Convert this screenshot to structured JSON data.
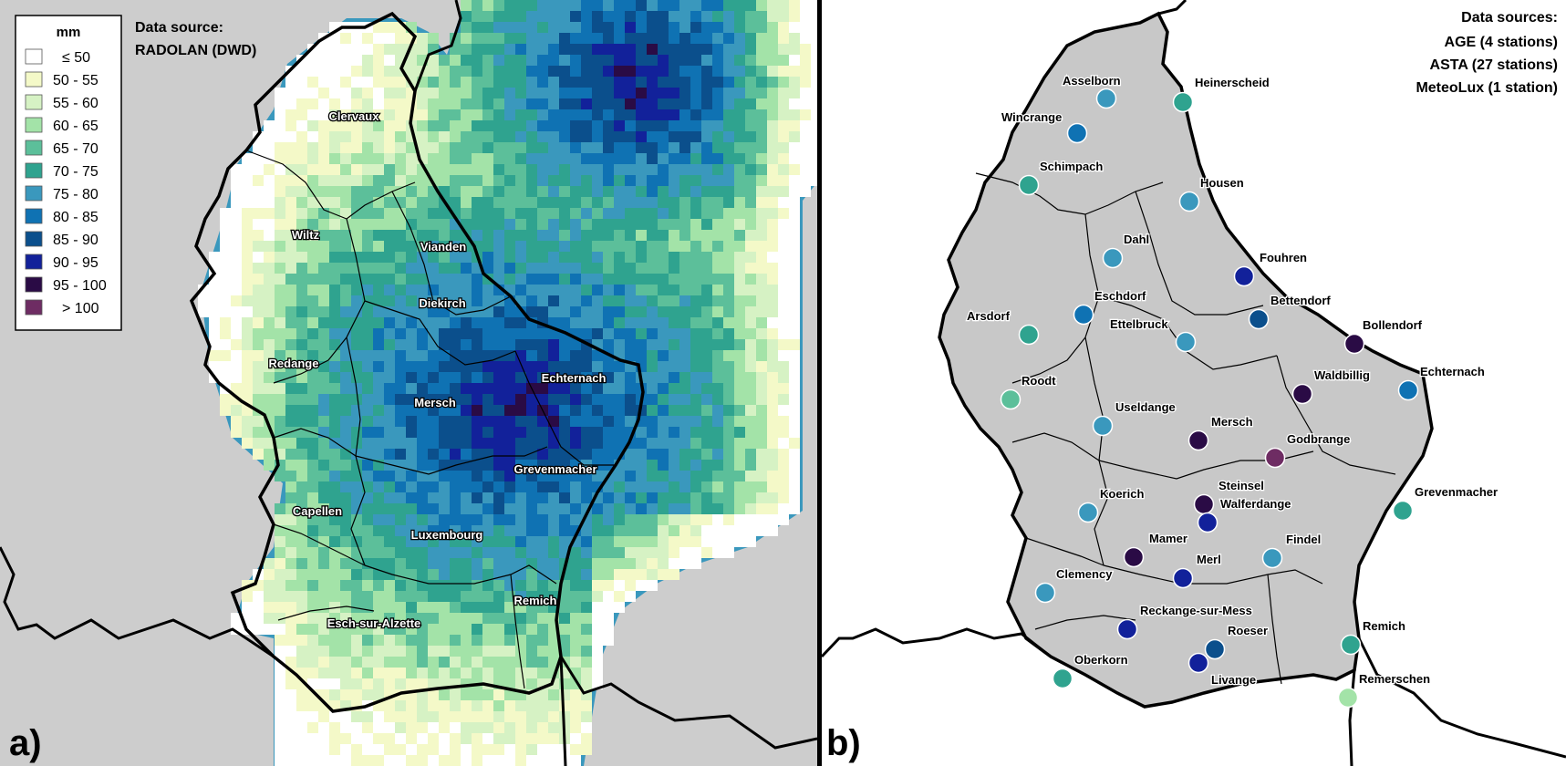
{
  "panel_a": {
    "letter": "a)",
    "source_title": "Data source:",
    "source_name": "RADOLAN (DWD)",
    "legend": {
      "title": "mm",
      "classes": [
        {
          "label": "≤ 50",
          "color": "#ffffff"
        },
        {
          "label": "50 - 55",
          "color": "#f4f9c8"
        },
        {
          "label": "55 - 60",
          "color": "#d6f2c4"
        },
        {
          "label": "60 - 65",
          "color": "#a3e3a8"
        },
        {
          "label": "65 - 70",
          "color": "#5cbf9a"
        },
        {
          "label": "70 - 75",
          "color": "#2fa38f"
        },
        {
          "label": "75 - 80",
          "color": "#3a98bd"
        },
        {
          "label": "80 - 85",
          "color": "#0f72b3"
        },
        {
          "label": "85 - 90",
          "color": "#0b4f8c"
        },
        {
          "label": "90 - 95",
          "color": "#12219a"
        },
        {
          "label": "95 - 100",
          "color": "#2a0b45"
        },
        {
          "label": "> 100",
          "color": "#6e2c63"
        }
      ]
    },
    "cantons": [
      "Clervaux",
      "Wiltz",
      "Vianden",
      "Diekirch",
      "Redange",
      "Mersch",
      "Echternach",
      "Grevenmacher",
      "Capellen",
      "Luxembourg",
      "Esch-sur-Alzette",
      "Remich"
    ]
  },
  "panel_b": {
    "letter": "b)",
    "sources_title": "Data sources:",
    "sources": [
      "AGE (4 stations)",
      "ASTA (27 stations)",
      "MeteoLux (1 station)"
    ],
    "stations": [
      {
        "name": "Asselborn",
        "class": "75 - 80",
        "color": "#3a98bd"
      },
      {
        "name": "Heinerscheid",
        "class": "70 - 75",
        "color": "#2fa38f"
      },
      {
        "name": "Wincrange",
        "class": "80 - 85",
        "color": "#0f72b3"
      },
      {
        "name": "Schimpach",
        "class": "70 - 75",
        "color": "#2fa38f"
      },
      {
        "name": "Housen",
        "class": "75 - 80",
        "color": "#3a98bd"
      },
      {
        "name": "Dahl",
        "class": "75 - 80",
        "color": "#3a98bd"
      },
      {
        "name": "Fouhren",
        "class": "90 - 95",
        "color": "#12219a"
      },
      {
        "name": "Bettendorf",
        "class": "85 - 90",
        "color": "#0b4f8c"
      },
      {
        "name": "Eschdorf",
        "class": "80 - 85",
        "color": "#0f72b3"
      },
      {
        "name": "Arsdorf",
        "class": "70 - 75",
        "color": "#2fa38f"
      },
      {
        "name": "Ettelbruck",
        "class": "75 - 80",
        "color": "#3a98bd"
      },
      {
        "name": "Bollendorf",
        "class": "95 - 100",
        "color": "#2a0b45"
      },
      {
        "name": "Echternach",
        "class": "80 - 85",
        "color": "#0f72b3"
      },
      {
        "name": "Waldbillig",
        "class": "95 - 100",
        "color": "#2a0b45"
      },
      {
        "name": "Roodt",
        "class": "65 - 70",
        "color": "#5cbf9a"
      },
      {
        "name": "Useldange",
        "class": "75 - 80",
        "color": "#3a98bd"
      },
      {
        "name": "Mersch",
        "class": "95 - 100",
        "color": "#2a0b45"
      },
      {
        "name": "Godbrange",
        "class": "> 100",
        "color": "#6e2c63"
      },
      {
        "name": "Steinsel",
        "class": "95 - 100",
        "color": "#2a0b45"
      },
      {
        "name": "Walferdange",
        "class": "90 - 95",
        "color": "#12219a"
      },
      {
        "name": "Koerich",
        "class": "75 - 80",
        "color": "#3a98bd"
      },
      {
        "name": "Grevenmacher",
        "class": "70 - 75",
        "color": "#2fa38f"
      },
      {
        "name": "Mamer",
        "class": "95 - 100",
        "color": "#2a0b45"
      },
      {
        "name": "Merl",
        "class": "90 - 95",
        "color": "#12219a"
      },
      {
        "name": "Findel",
        "class": "75 - 80",
        "color": "#3a98bd"
      },
      {
        "name": "Clemency",
        "class": "75 - 80",
        "color": "#3a98bd"
      },
      {
        "name": "Reckange-sur-Mess",
        "class": "90 - 95",
        "color": "#12219a"
      },
      {
        "name": "Roeser",
        "class": "85 - 90",
        "color": "#0b4f8c"
      },
      {
        "name": "Remich",
        "class": "70 - 75",
        "color": "#2fa38f"
      },
      {
        "name": "Oberkorn",
        "class": "70 - 75",
        "color": "#2fa38f"
      },
      {
        "name": "Livange",
        "class": "90 - 95",
        "color": "#12219a"
      },
      {
        "name": "Remerschen",
        "class": "60 - 65",
        "color": "#a3e3a8"
      }
    ]
  }
}
